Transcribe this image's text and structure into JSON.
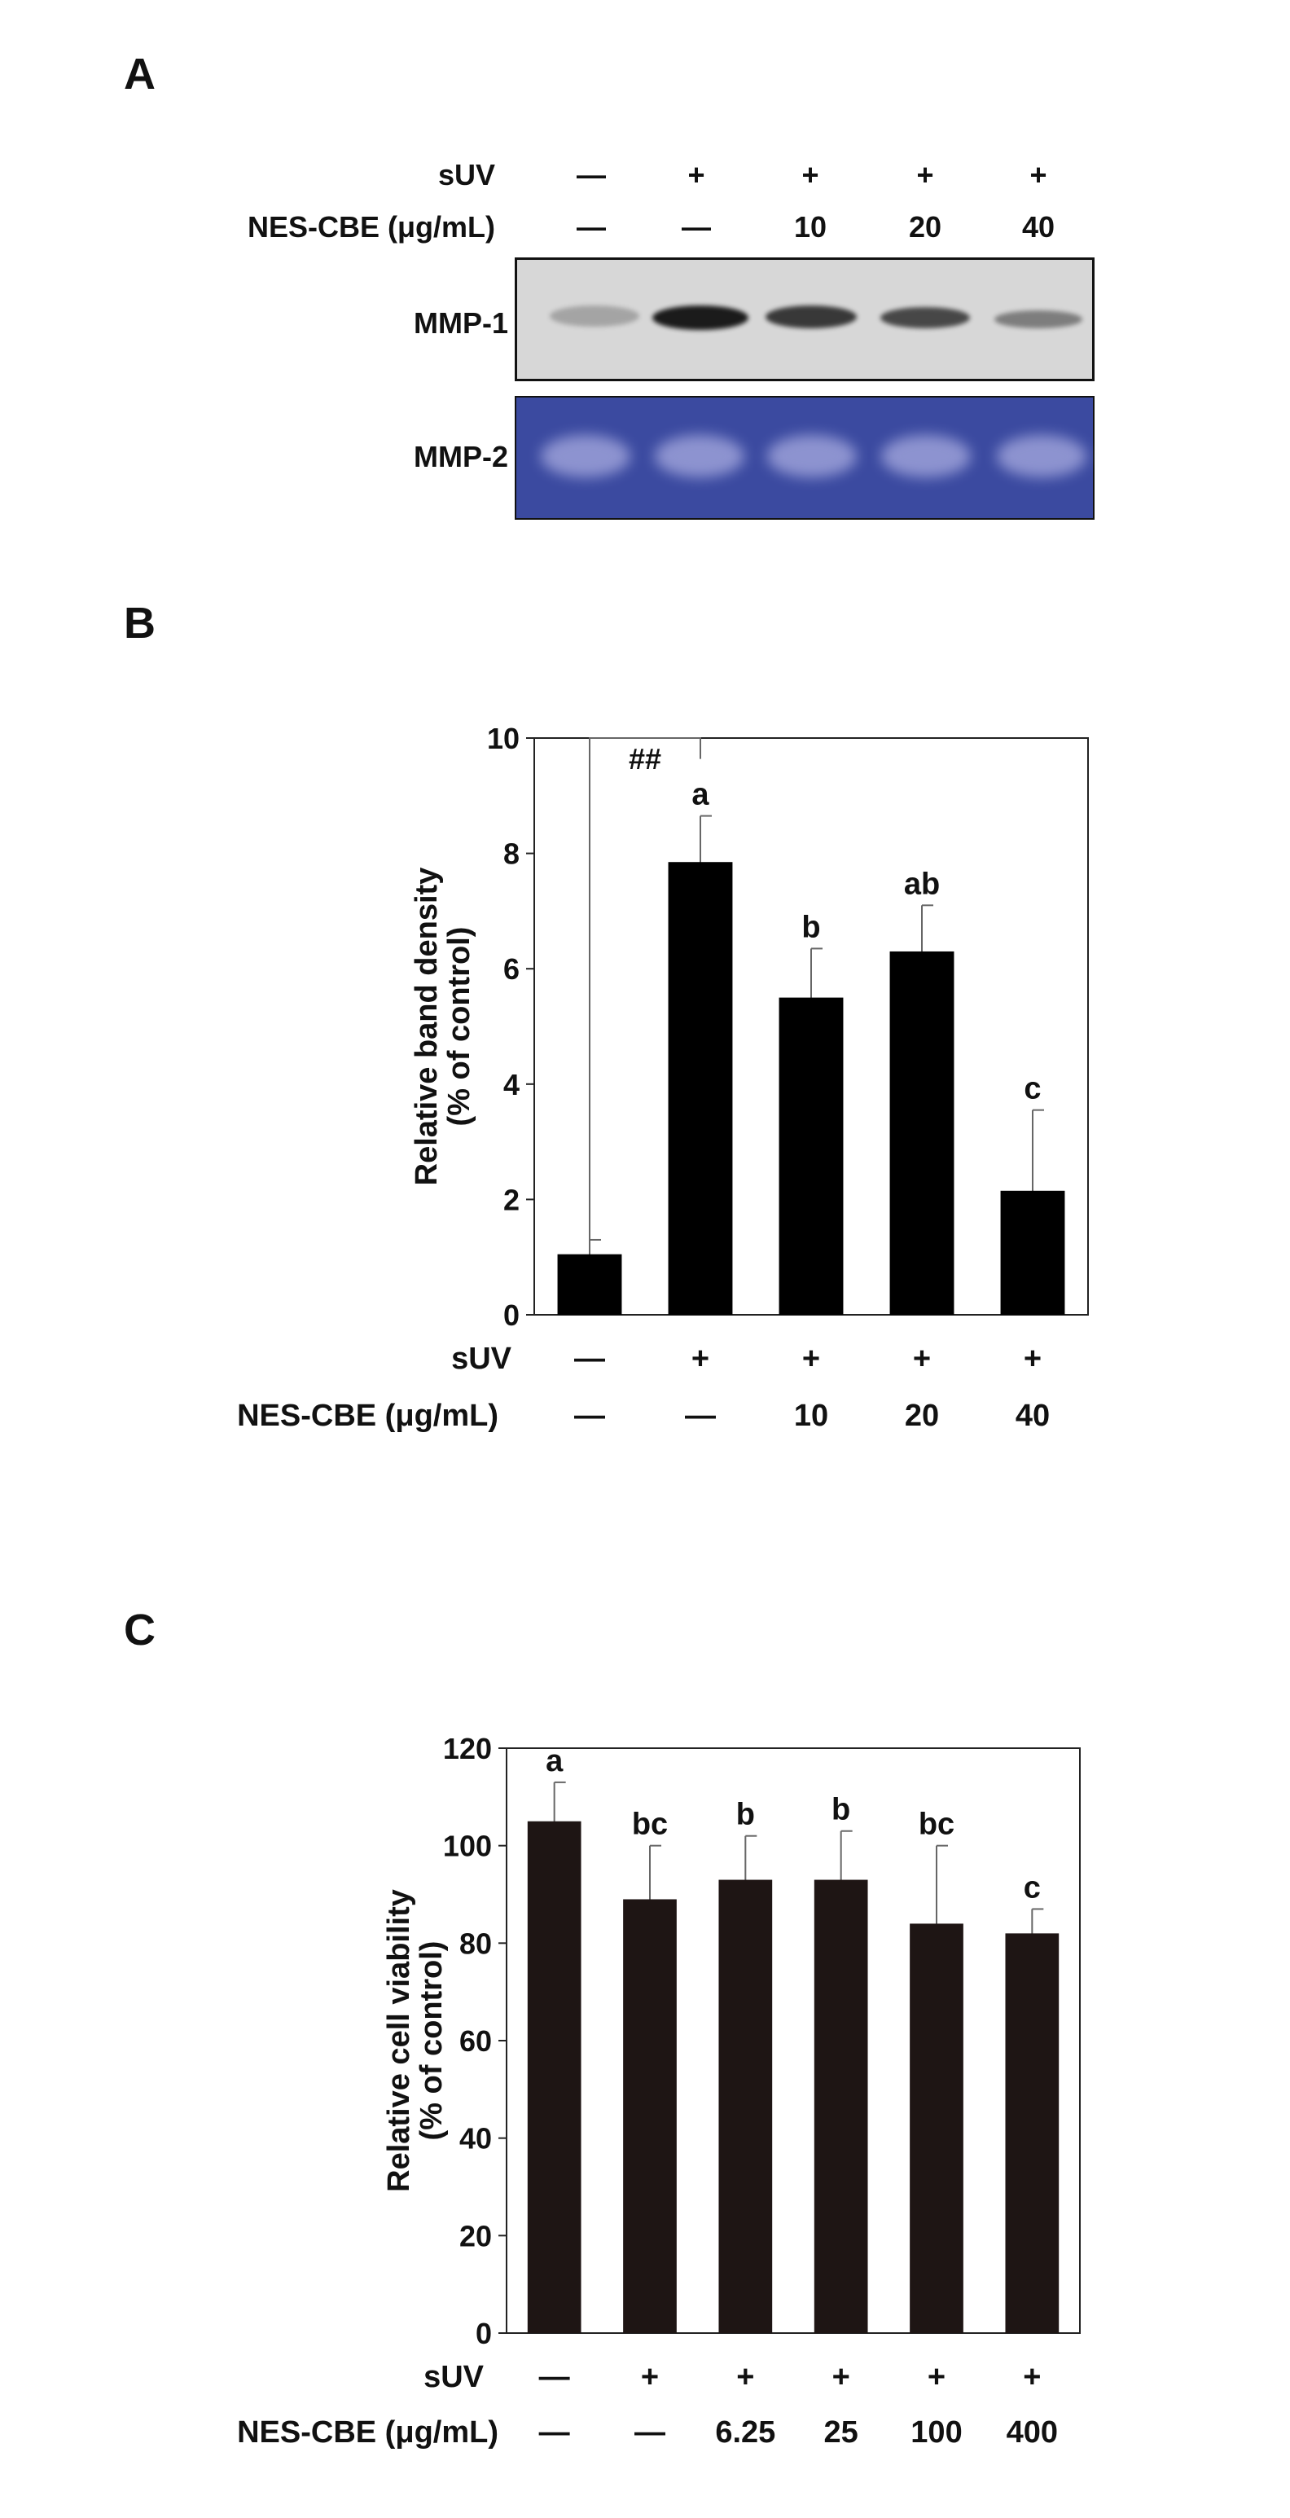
{
  "panels": {
    "a": {
      "letter": "A",
      "row_labels": {
        "suv": "sUV",
        "nes": "NES-CBE (μg/mL)"
      },
      "suv_signs": [
        "—",
        "+",
        "+",
        "+",
        "+"
      ],
      "nes_values": [
        "—",
        "—",
        "10",
        "20",
        "40"
      ],
      "blot_labels": {
        "mmp1": "MMP-1",
        "mmp2": "MMP-2"
      },
      "mmp1_band_intensity": [
        0.25,
        0.95,
        0.8,
        0.72,
        0.45
      ],
      "colors": {
        "mmp1_bg": "#d7d7d7",
        "mmp2_bg": "#3b4aa0",
        "band_dark": "#111111",
        "band_light": "#a9ace0"
      }
    },
    "b": {
      "letter": "B"
    },
    "c": {
      "letter": "C"
    }
  },
  "chart_data": [
    {
      "type": "bar",
      "panel": "B",
      "ylabel": "Relative band density (% of control)",
      "ylabel_lines": [
        "Relative band density",
        "(% of control)"
      ],
      "ylim": [
        0,
        10
      ],
      "yticks": [
        0,
        2,
        4,
        6,
        8,
        10
      ],
      "row_labels": {
        "suv": "sUV",
        "nes": "NES-CBE (μg/mL)"
      },
      "categories_suv": [
        "—",
        "+",
        "+",
        "+",
        "+"
      ],
      "categories_nes": [
        "—",
        "—",
        "10",
        "20",
        "40"
      ],
      "values": [
        1.05,
        7.85,
        5.5,
        6.3,
        2.15
      ],
      "errors": [
        0.25,
        0.8,
        0.85,
        0.8,
        1.4
      ],
      "significance": [
        "",
        "a",
        "b",
        "ab",
        "c"
      ],
      "bracket_label": "##",
      "bracket_between": [
        0,
        1
      ],
      "bracket_y": 10,
      "bar_color": "#000000"
    },
    {
      "type": "bar",
      "panel": "C",
      "ylabel": "Relative cell viability (% of control)",
      "ylabel_lines": [
        "Relative cell viability",
        "(% of control)"
      ],
      "ylim": [
        0,
        120
      ],
      "yticks": [
        0,
        20,
        40,
        60,
        80,
        100,
        120
      ],
      "row_labels": {
        "suv": "sUV",
        "nes": "NES-CBE (μg/mL)"
      },
      "categories_suv": [
        "—",
        "+",
        "+",
        "+",
        "+",
        "+"
      ],
      "categories_nes": [
        "—",
        "—",
        "6.25",
        "25",
        "100",
        "400"
      ],
      "values": [
        105,
        89,
        93,
        93,
        84,
        82
      ],
      "errors": [
        8,
        11,
        9,
        10,
        16,
        5
      ],
      "significance": [
        "a",
        "bc",
        "b",
        "b",
        "bc",
        "c"
      ],
      "bar_color": "#1e1514"
    }
  ]
}
